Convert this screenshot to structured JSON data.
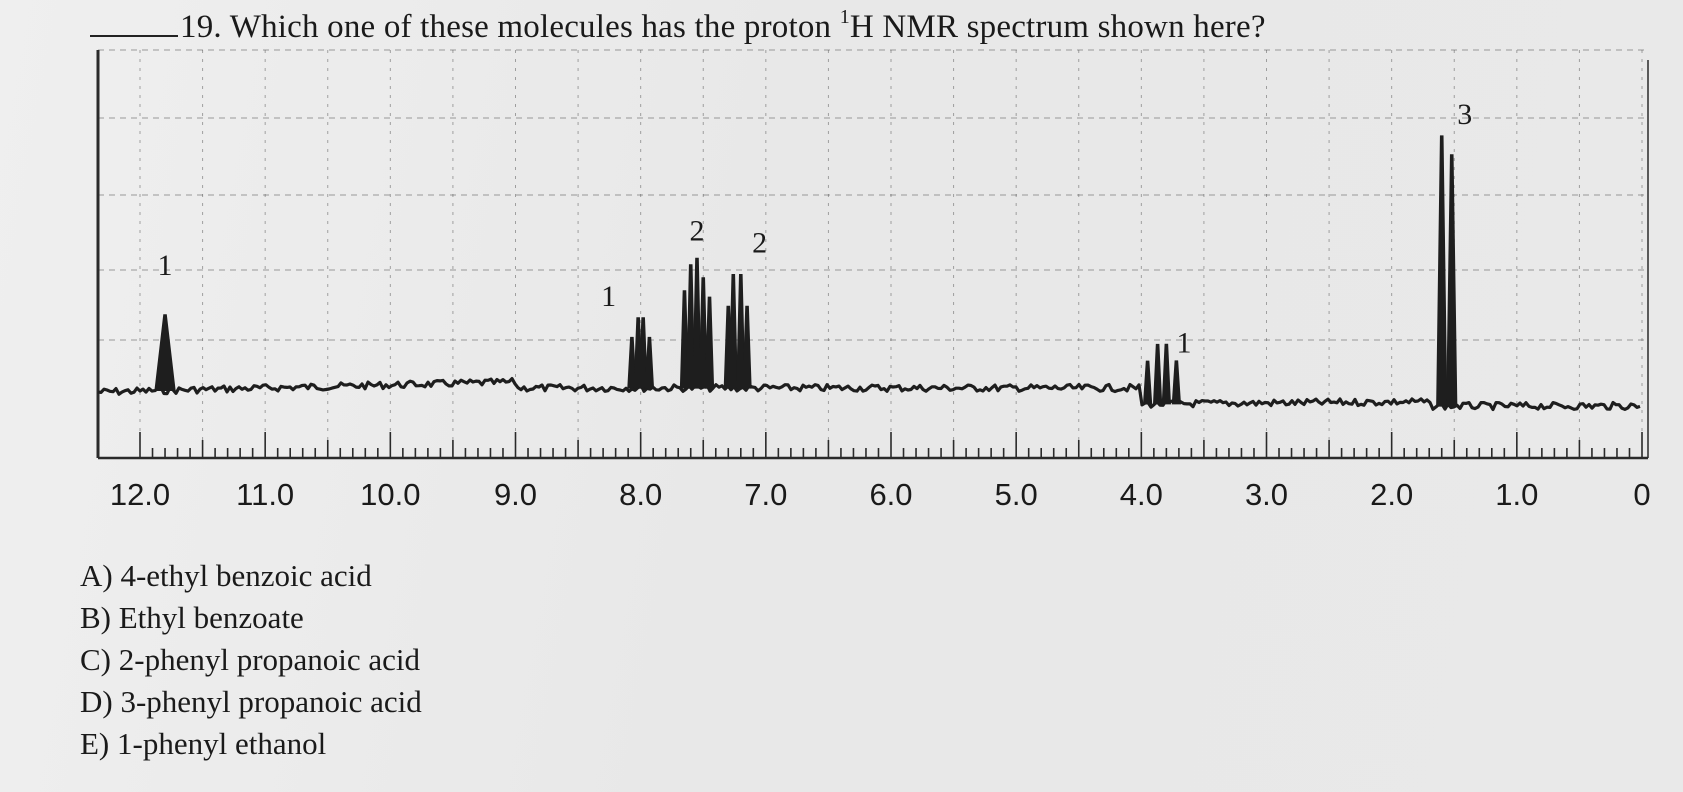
{
  "question": {
    "number": "19.",
    "text_before": "Which one of these molecules has the proton ",
    "sup": "1",
    "text_after": "H NMR spectrum shown here?"
  },
  "chart_data": {
    "type": "line",
    "xlim": [
      12.0,
      0
    ],
    "x_tick_labels": [
      "12.0",
      "11.0",
      "10.0",
      "9.0",
      "8.0",
      "7.0",
      "6.0",
      "5.0",
      "4.0",
      "3.0",
      "2.0",
      "1.0",
      "0"
    ],
    "x_tick_values": [
      12.0,
      11.0,
      10.0,
      9.0,
      8.0,
      7.0,
      6.0,
      5.0,
      4.0,
      3.0,
      2.0,
      1.0,
      0
    ],
    "grid": true,
    "peaks": [
      {
        "shift": 11.8,
        "integration_label": "1",
        "multiplicity": "singlet",
        "lines": [
          11.8
        ],
        "relative_height": 0.28
      },
      {
        "shift": 7.95,
        "integration_label": "1",
        "multiplicity": "multiplet",
        "lines": [
          8.07,
          8.02,
          7.98,
          7.93
        ],
        "relative_height": 0.26
      },
      {
        "shift": 7.55,
        "integration_label": "2",
        "multiplicity": "multiplet",
        "lines": [
          7.65,
          7.6,
          7.55,
          7.5,
          7.45
        ],
        "relative_height": 0.48
      },
      {
        "shift": 7.2,
        "integration_label": "2",
        "multiplicity": "multiplet",
        "lines": [
          7.3,
          7.26,
          7.2,
          7.15
        ],
        "relative_height": 0.42
      },
      {
        "shift": 3.8,
        "integration_label": "1",
        "multiplicity": "quartet",
        "lines": [
          3.95,
          3.87,
          3.8,
          3.72
        ],
        "relative_height": 0.22
      },
      {
        "shift": 1.55,
        "integration_label": "3",
        "multiplicity": "doublet",
        "lines": [
          1.6,
          1.52
        ],
        "relative_height": 1.0
      }
    ]
  },
  "choices": [
    {
      "letter": "A)",
      "text": "4-ethyl benzoic acid"
    },
    {
      "letter": "B)",
      "text": "Ethyl benzoate"
    },
    {
      "letter": "C)",
      "text": "2-phenyl propanoic acid"
    },
    {
      "letter": "D)",
      "text": "3-phenyl propanoic acid"
    },
    {
      "letter": "E)",
      "text": "1-phenyl ethanol"
    }
  ],
  "colors": {
    "trace": "#1e1e1e",
    "grid": "#555555",
    "frame": "#2a2a2a"
  }
}
